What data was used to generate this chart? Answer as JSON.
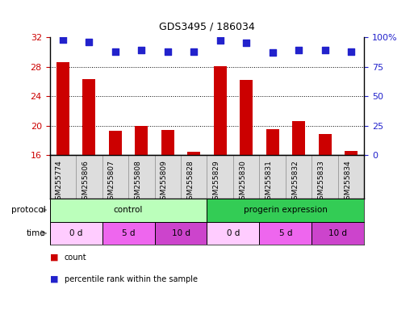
{
  "title": "GDS3495 / 186034",
  "samples": [
    "GSM255774",
    "GSM255806",
    "GSM255807",
    "GSM255808",
    "GSM255809",
    "GSM255828",
    "GSM255829",
    "GSM255830",
    "GSM255831",
    "GSM255832",
    "GSM255833",
    "GSM255834"
  ],
  "count_values": [
    28.6,
    26.3,
    19.3,
    19.9,
    19.4,
    16.4,
    28.1,
    26.2,
    19.5,
    20.6,
    18.8,
    16.5
  ],
  "percentile_values": [
    98,
    96,
    88,
    89,
    88,
    88,
    97,
    95,
    87,
    89,
    89,
    88
  ],
  "ylim_left": [
    16,
    32
  ],
  "ylim_right": [
    0,
    100
  ],
  "yticks_left": [
    16,
    20,
    24,
    28,
    32
  ],
  "yticks_right": [
    0,
    25,
    50,
    75,
    100
  ],
  "bar_color": "#cc0000",
  "dot_color": "#2222cc",
  "grid_color": "#000000",
  "protocol_row": [
    {
      "label": "control",
      "start": 0,
      "end": 6,
      "color": "#bbffbb"
    },
    {
      "label": "progerin expression",
      "start": 6,
      "end": 12,
      "color": "#33cc55"
    }
  ],
  "time_row": [
    {
      "label": "0 d",
      "start": 0,
      "end": 2,
      "color": "#ffccff"
    },
    {
      "label": "5 d",
      "start": 2,
      "end": 4,
      "color": "#ee66ee"
    },
    {
      "label": "10 d",
      "start": 4,
      "end": 6,
      "color": "#cc44cc"
    },
    {
      "label": "0 d",
      "start": 6,
      "end": 8,
      "color": "#ffccff"
    },
    {
      "label": "5 d",
      "start": 8,
      "end": 10,
      "color": "#ee66ee"
    },
    {
      "label": "10 d",
      "start": 10,
      "end": 12,
      "color": "#cc44cc"
    }
  ],
  "legend_count_color": "#cc0000",
  "legend_pct_color": "#2222cc",
  "tick_label_color_left": "#cc0000",
  "tick_label_color_right": "#2222cc",
  "bar_width": 0.5,
  "dot_size": 40,
  "dot_marker": "s",
  "sample_box_color": "#dddddd",
  "background_color": "#ffffff"
}
